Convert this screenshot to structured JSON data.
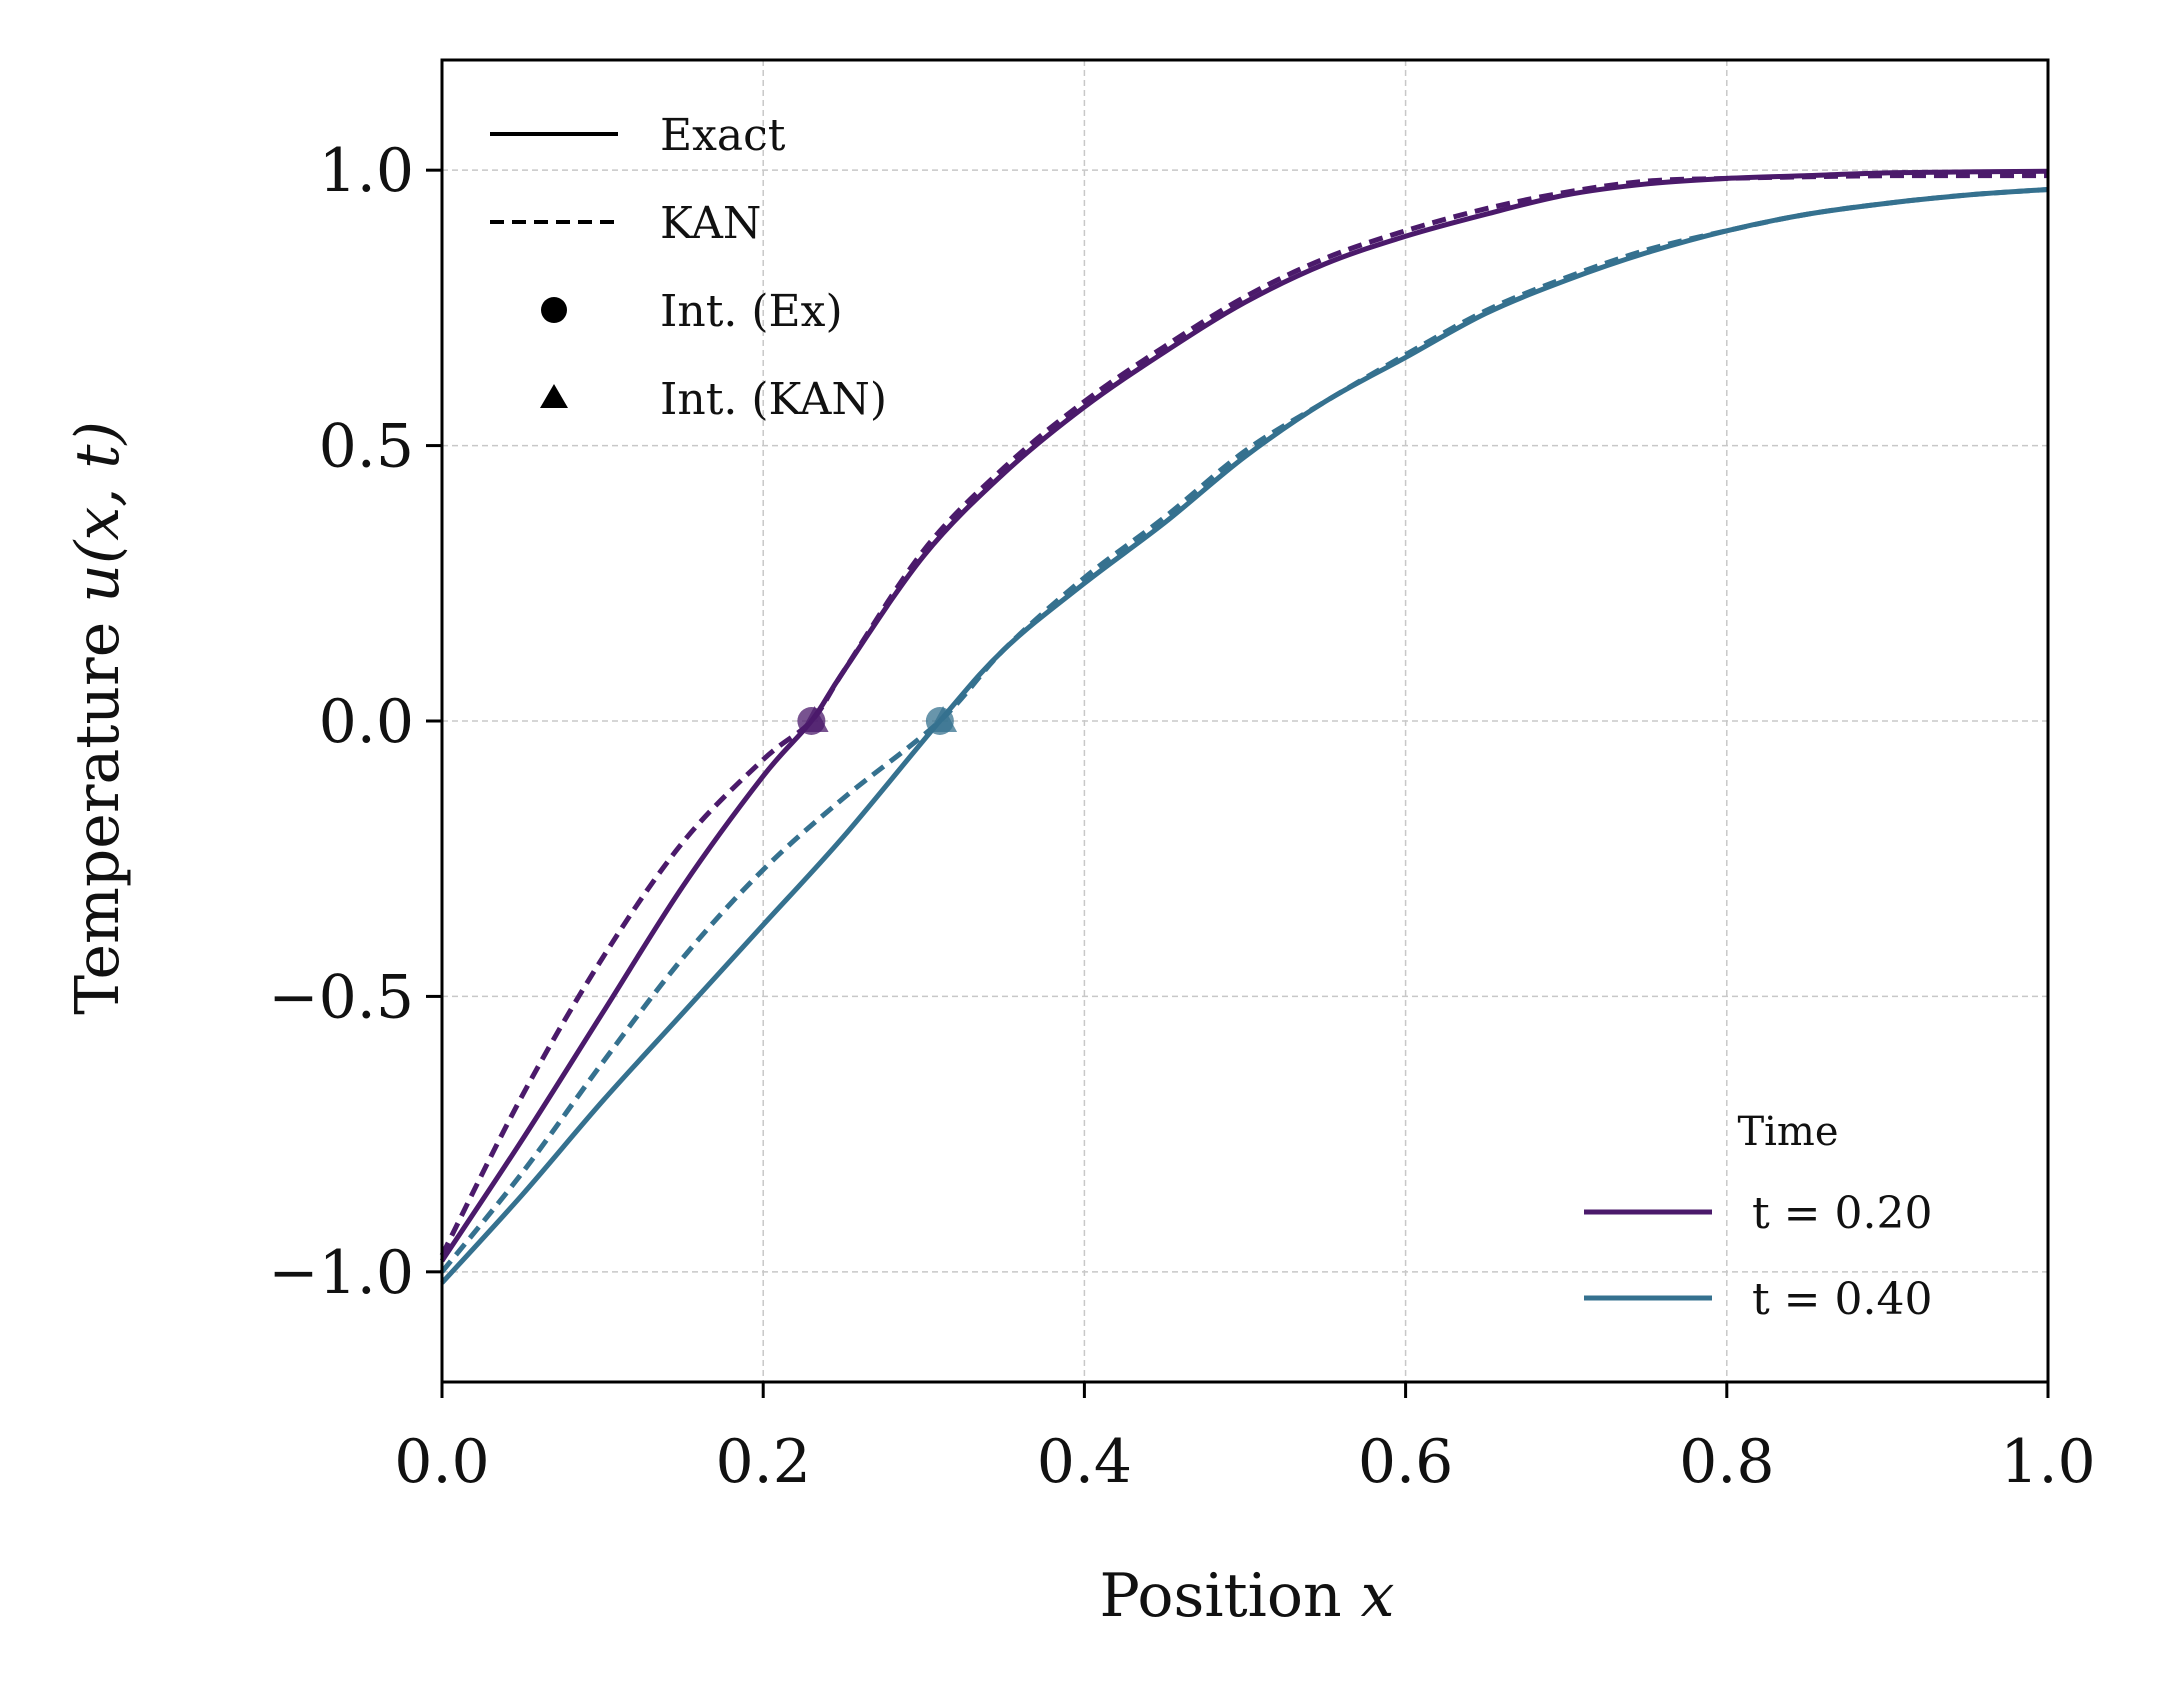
{
  "chart_data": {
    "type": "line",
    "xlabel": "Position x",
    "ylabel": "Temperature u(x, t)",
    "xlabel_main": "Position ",
    "xlabel_var": "x",
    "ylabel_main": "Temperature ",
    "ylabel_var": "u(x, t)",
    "xlim": [
      0.0,
      1.0
    ],
    "ylim": [
      -1.2,
      1.2
    ],
    "xticks": [
      0.0,
      0.2,
      0.4,
      0.6,
      0.8,
      1.0
    ],
    "xtick_labels": [
      "0.0",
      "0.2",
      "0.4",
      "0.6",
      "0.8",
      "1.0"
    ],
    "yticks": [
      -1.0,
      -0.5,
      0.0,
      0.5,
      1.0
    ],
    "ytick_labels": [
      "−1.0",
      "−0.5",
      "0.0",
      "0.5",
      "1.0"
    ],
    "grid": true,
    "style_legend": {
      "placement": "upper-left",
      "entries": [
        {
          "label": "Exact",
          "marker": "solid-line"
        },
        {
          "label": "KAN",
          "marker": "dashed-line"
        },
        {
          "label": "Int. (Ex)",
          "marker": "circle"
        },
        {
          "label": "Int. (KAN)",
          "marker": "triangle"
        }
      ]
    },
    "time_legend": {
      "placement": "lower-right",
      "title": "Time",
      "entries": [
        {
          "label": "t = 0.20",
          "color": "#4b1a6b"
        },
        {
          "label": "t = 0.40",
          "color": "#35718f"
        }
      ]
    },
    "series": [
      {
        "name": "t = 0.20 Exact",
        "time": "0.20",
        "kind": "exact",
        "color": "#4b1a6b",
        "x": [
          0.0,
          0.05,
          0.1,
          0.15,
          0.2,
          0.23,
          0.25,
          0.3,
          0.35,
          0.4,
          0.45,
          0.5,
          0.55,
          0.6,
          0.65,
          0.7,
          0.75,
          0.8,
          0.85,
          0.9,
          0.95,
          1.0
        ],
        "y": [
          -0.98,
          -0.76,
          -0.53,
          -0.3,
          -0.1,
          0.0,
          0.09,
          0.3,
          0.45,
          0.57,
          0.67,
          0.76,
          0.83,
          0.88,
          0.92,
          0.955,
          0.975,
          0.985,
          0.99,
          0.995,
          0.997,
          0.998
        ]
      },
      {
        "name": "t = 0.20 KAN",
        "time": "0.20",
        "kind": "kan",
        "color": "#4b1a6b",
        "x": [
          0.0,
          0.05,
          0.1,
          0.15,
          0.2,
          0.23,
          0.25,
          0.3,
          0.35,
          0.4,
          0.45,
          0.5,
          0.55,
          0.6,
          0.65,
          0.7,
          0.75,
          0.8,
          0.85,
          0.9,
          0.95,
          1.0
        ],
        "y": [
          -0.97,
          -0.68,
          -0.43,
          -0.22,
          -0.07,
          0.0,
          0.09,
          0.31,
          0.46,
          0.58,
          0.68,
          0.77,
          0.84,
          0.89,
          0.93,
          0.96,
          0.98,
          0.985,
          0.988,
          0.99,
          0.99,
          0.99
        ]
      },
      {
        "name": "t = 0.40 Exact",
        "time": "0.40",
        "kind": "exact",
        "color": "#35718f",
        "x": [
          0.0,
          0.05,
          0.1,
          0.15,
          0.2,
          0.25,
          0.31,
          0.35,
          0.4,
          0.45,
          0.5,
          0.55,
          0.6,
          0.65,
          0.7,
          0.75,
          0.8,
          0.85,
          0.9,
          0.95,
          1.0
        ],
        "y": [
          -1.02,
          -0.86,
          -0.69,
          -0.53,
          -0.37,
          -0.21,
          0.0,
          0.13,
          0.25,
          0.36,
          0.48,
          0.58,
          0.66,
          0.74,
          0.8,
          0.85,
          0.89,
          0.92,
          0.94,
          0.955,
          0.965
        ]
      },
      {
        "name": "t = 0.40 KAN",
        "time": "0.40",
        "kind": "kan",
        "color": "#35718f",
        "x": [
          0.0,
          0.05,
          0.1,
          0.15,
          0.2,
          0.25,
          0.31,
          0.35,
          0.4,
          0.45,
          0.5,
          0.55,
          0.6,
          0.65,
          0.7,
          0.75,
          0.8,
          0.85,
          0.9,
          0.95,
          1.0
        ],
        "y": [
          -1.0,
          -0.82,
          -0.62,
          -0.43,
          -0.27,
          -0.14,
          0.0,
          0.13,
          0.26,
          0.37,
          0.49,
          0.58,
          0.665,
          0.745,
          0.805,
          0.855,
          0.89,
          0.92,
          0.94,
          0.955,
          0.965
        ]
      }
    ],
    "intersections": [
      {
        "time": "0.20",
        "kind": "exact",
        "marker": "circle",
        "x": 0.23,
        "y": 0.0,
        "color": "#4b1a6b"
      },
      {
        "time": "0.20",
        "kind": "kan",
        "marker": "triangle",
        "x": 0.232,
        "y": 0.0,
        "color": "#4b1a6b"
      },
      {
        "time": "0.40",
        "kind": "exact",
        "marker": "circle",
        "x": 0.31,
        "y": 0.0,
        "color": "#35718f"
      },
      {
        "time": "0.40",
        "kind": "kan",
        "marker": "triangle",
        "x": 0.312,
        "y": 0.0,
        "color": "#35718f"
      }
    ]
  }
}
